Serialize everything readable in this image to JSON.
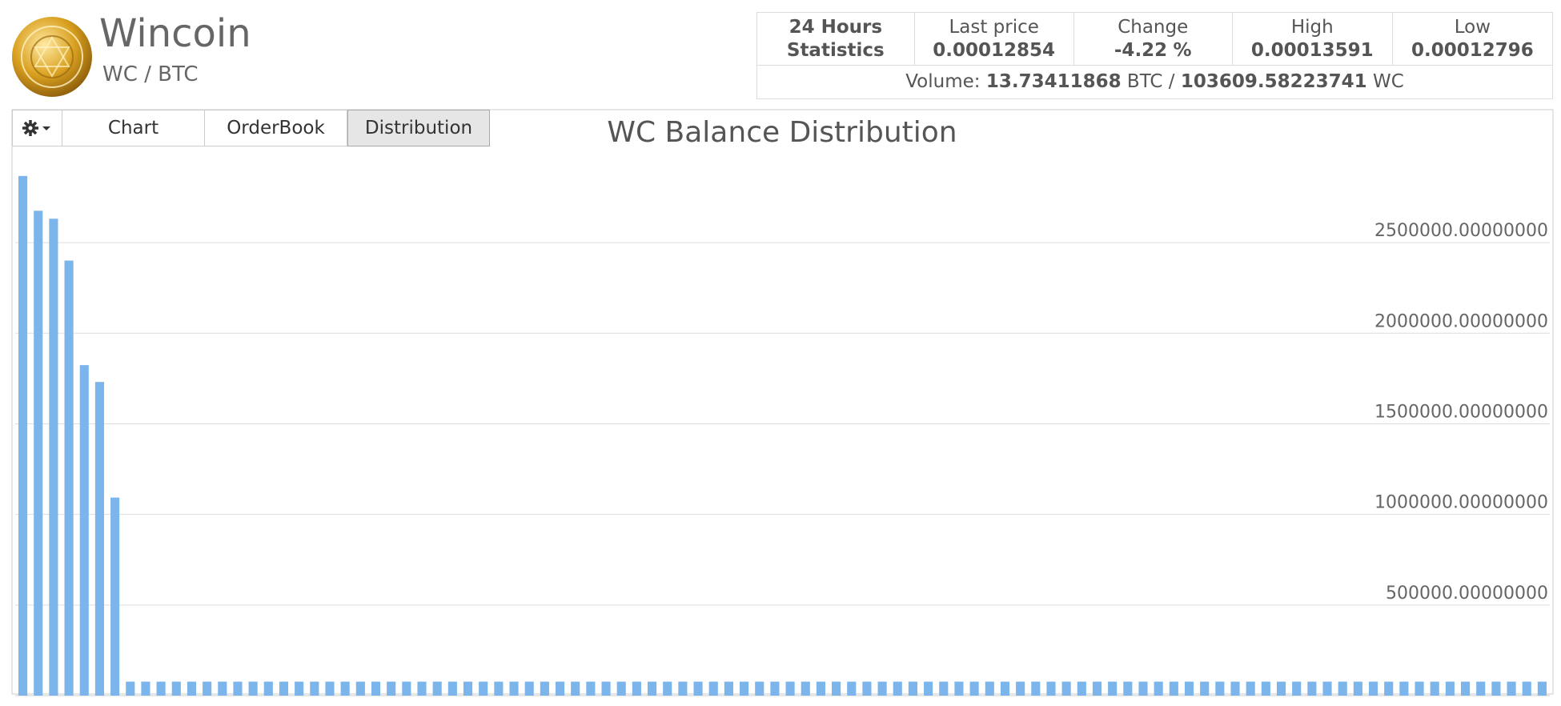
{
  "header": {
    "name": "Wincoin",
    "pair": "WC / BTC"
  },
  "stats": {
    "title_lines": [
      "24 Hours",
      "Statistics"
    ],
    "last_price_label": "Last price",
    "last_price": "0.00012854",
    "change_label": "Change",
    "change": "-4.22",
    "change_unit": "%",
    "high_label": "High",
    "high": "0.00013591",
    "low_label": "Low",
    "low": "0.00012796",
    "volume_label": "Volume:",
    "volume_btc": "13.73411868",
    "volume_btc_unit": "BTC /",
    "volume_wc": "103609.58223741",
    "volume_wc_unit": "WC"
  },
  "tabs": [
    "Chart",
    "OrderBook",
    "Distribution"
  ],
  "chart_data": {
    "type": "bar",
    "title": "WC Balance Distribution",
    "color": "#7cb5ec",
    "grid": true,
    "ylim": [
      0,
      2960000
    ],
    "yticks": [
      {
        "value": 500000,
        "label": "500000.00000000"
      },
      {
        "value": 1000000,
        "label": "1000000.00000000"
      },
      {
        "value": 1500000,
        "label": "1500000.00000000"
      },
      {
        "value": 2000000,
        "label": "2000000.00000000"
      },
      {
        "value": 2500000,
        "label": "2500000.00000000"
      }
    ],
    "values": [
      2868000,
      2676000,
      2632000,
      2401000,
      1824000,
      1731000,
      1093000,
      77000,
      77000,
      77000,
      77000,
      77000,
      77000,
      77000,
      77000,
      77000,
      77000,
      77000,
      77000,
      77000,
      77000,
      77000,
      77000,
      77000,
      77000,
      77000,
      77000,
      77000,
      77000,
      77000,
      77000,
      77000,
      77000,
      77000,
      77000,
      77000,
      77000,
      77000,
      77000,
      77000,
      77000,
      77000,
      77000,
      77000,
      77000,
      77000,
      77000,
      77000,
      77000,
      77000,
      77000,
      77000,
      77000,
      77000,
      77000,
      77000,
      77000,
      77000,
      77000,
      77000,
      77000,
      77000,
      77000,
      77000,
      77000,
      77000,
      77000,
      77000,
      77000,
      77000,
      77000,
      77000,
      77000,
      77000,
      77000,
      77000,
      77000,
      77000,
      77000,
      77000,
      77000,
      77000,
      77000,
      77000,
      77000,
      77000,
      77000,
      77000,
      77000,
      77000,
      77000,
      77000,
      77000,
      77000,
      77000,
      77000,
      77000,
      77000,
      77000,
      77000
    ]
  }
}
